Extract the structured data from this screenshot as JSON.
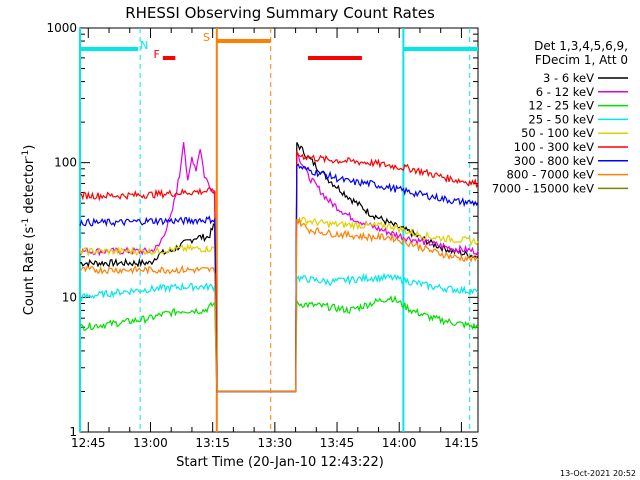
{
  "chart_data": {
    "type": "line",
    "title": "RHESSI Observing Summary Count Rates",
    "xlabel": "Start Time (20-Jan-10 12:43:22)",
    "ylabel_main": "Count Rate (s",
    "ylabel_sup1": "-1",
    "ylabel_mid": " detector",
    "ylabel_sup2": "-1",
    "ylabel_end": ")",
    "footer_timestamp": "13-Oct-2021 20:52",
    "x_range_minutes": [
      0,
      96
    ],
    "y_scale": "log",
    "ylim": [
      1,
      1000
    ],
    "x_ticks": [
      {
        "t": 2,
        "label": "12:45"
      },
      {
        "t": 17,
        "label": "13:00"
      },
      {
        "t": 32,
        "label": "13:15"
      },
      {
        "t": 47,
        "label": "13:30"
      },
      {
        "t": 62,
        "label": "13:45"
      },
      {
        "t": 77,
        "label": "14:00"
      },
      {
        "t": 92,
        "label": "14:15"
      }
    ],
    "y_ticks": [
      {
        "v": 1,
        "label": "1"
      },
      {
        "v": 10,
        "label": "10"
      },
      {
        "v": 100,
        "label": "100"
      },
      {
        "v": 1000,
        "label": "1000"
      }
    ],
    "legend_header": [
      "Det 1,3,4,5,6,9,",
      "FDecim 1, Att 0"
    ],
    "legend_position": "right",
    "series": [
      {
        "name": "3 - 6 keV",
        "color": "#000000",
        "points": [
          [
            0,
            18
          ],
          [
            17,
            18
          ],
          [
            19,
            21
          ],
          [
            22,
            22
          ],
          [
            25,
            25
          ],
          [
            28,
            28
          ],
          [
            31,
            28
          ],
          [
            32.5,
            35
          ],
          [
            33,
            2
          ],
          [
            52,
            2
          ],
          [
            52.3,
            140
          ],
          [
            55,
            110
          ],
          [
            60,
            75
          ],
          [
            65,
            55
          ],
          [
            70,
            42
          ],
          [
            75,
            35
          ],
          [
            80,
            30
          ],
          [
            85,
            25
          ],
          [
            90,
            22
          ],
          [
            96,
            20
          ]
        ]
      },
      {
        "name": "6 - 12 keV",
        "color": "#e000e0",
        "points": [
          [
            0,
            22
          ],
          [
            17,
            22
          ],
          [
            19,
            24
          ],
          [
            22,
            40
          ],
          [
            24,
            80
          ],
          [
            25,
            150
          ],
          [
            26,
            70
          ],
          [
            27,
            110
          ],
          [
            28,
            90
          ],
          [
            29,
            130
          ],
          [
            30,
            80
          ],
          [
            31,
            70
          ],
          [
            32.5,
            60
          ],
          [
            33,
            2
          ],
          [
            52,
            2
          ],
          [
            52.3,
            120
          ],
          [
            55,
            80
          ],
          [
            60,
            52
          ],
          [
            65,
            40
          ],
          [
            70,
            34
          ],
          [
            75,
            30
          ],
          [
            80,
            27
          ],
          [
            85,
            25
          ],
          [
            90,
            23
          ],
          [
            96,
            22
          ]
        ]
      },
      {
        "name": "12 - 25 keV",
        "color": "#00e000",
        "points": [
          [
            0,
            6
          ],
          [
            10,
            6.5
          ],
          [
            17,
            7
          ],
          [
            20,
            7.5
          ],
          [
            25,
            8
          ],
          [
            30,
            8
          ],
          [
            32.5,
            9
          ],
          [
            33,
            2
          ],
          [
            52,
            2
          ],
          [
            52.3,
            9
          ],
          [
            60,
            8.5
          ],
          [
            65,
            8
          ],
          [
            70,
            9
          ],
          [
            75,
            10
          ],
          [
            80,
            8
          ],
          [
            85,
            7
          ],
          [
            90,
            6.5
          ],
          [
            96,
            6
          ]
        ]
      },
      {
        "name": "25 - 50 keV",
        "color": "#00e8e8",
        "points": [
          [
            0,
            10
          ],
          [
            10,
            11
          ],
          [
            17,
            11.5
          ],
          [
            25,
            12
          ],
          [
            32.5,
            12
          ],
          [
            33,
            2
          ],
          [
            52,
            2
          ],
          [
            52.3,
            14
          ],
          [
            60,
            13
          ],
          [
            65,
            13.5
          ],
          [
            70,
            14
          ],
          [
            75,
            14
          ],
          [
            80,
            13
          ],
          [
            85,
            12
          ],
          [
            90,
            11.5
          ],
          [
            96,
            11
          ]
        ]
      },
      {
        "name": "50 - 100 keV",
        "color": "#e0d000",
        "points": [
          [
            0,
            22
          ],
          [
            17,
            22
          ],
          [
            25,
            23
          ],
          [
            32.5,
            23
          ],
          [
            33,
            2
          ],
          [
            52,
            2
          ],
          [
            52.3,
            38
          ],
          [
            60,
            35
          ],
          [
            70,
            34
          ],
          [
            75,
            34
          ],
          [
            80,
            30
          ],
          [
            85,
            28
          ],
          [
            90,
            27
          ],
          [
            96,
            26
          ]
        ]
      },
      {
        "name": "100 - 300 keV",
        "color": "#ff0000",
        "points": [
          [
            0,
            57
          ],
          [
            10,
            57
          ],
          [
            17,
            58
          ],
          [
            25,
            60
          ],
          [
            32.5,
            62
          ],
          [
            33,
            2
          ],
          [
            52,
            2
          ],
          [
            52.3,
            115
          ],
          [
            55,
            110
          ],
          [
            60,
            105
          ],
          [
            70,
            100
          ],
          [
            75,
            95
          ],
          [
            80,
            90
          ],
          [
            85,
            82
          ],
          [
            90,
            75
          ],
          [
            96,
            70
          ]
        ]
      },
      {
        "name": "300 - 800 keV",
        "color": "#0000ff",
        "points": [
          [
            0,
            36
          ],
          [
            10,
            36
          ],
          [
            17,
            37
          ],
          [
            25,
            37
          ],
          [
            32.5,
            38
          ],
          [
            33,
            2
          ],
          [
            52,
            2
          ],
          [
            52.3,
            95
          ],
          [
            55,
            88
          ],
          [
            60,
            80
          ],
          [
            65,
            72
          ],
          [
            70,
            70
          ],
          [
            75,
            65
          ],
          [
            80,
            60
          ],
          [
            85,
            56
          ],
          [
            90,
            52
          ],
          [
            96,
            50
          ]
        ]
      },
      {
        "name": "800 - 7000 keV",
        "color": "#ff8000",
        "points": [
          [
            0,
            16
          ],
          [
            10,
            16
          ],
          [
            17,
            16
          ],
          [
            25,
            16
          ],
          [
            32.5,
            16
          ],
          [
            33,
            2
          ],
          [
            52,
            2
          ],
          [
            52.3,
            38
          ],
          [
            55,
            32
          ],
          [
            60,
            30
          ],
          [
            65,
            29
          ],
          [
            70,
            28
          ],
          [
            75,
            28
          ],
          [
            80,
            25
          ],
          [
            85,
            22
          ],
          [
            90,
            20
          ],
          [
            96,
            19
          ]
        ]
      },
      {
        "name": "7000 - 15000 keV",
        "color": "#808000",
        "points": []
      }
    ],
    "flags": [
      {
        "label": "N",
        "color": "#00e8e8",
        "segments": [
          [
            0,
            14
          ],
          [
            78,
            96
          ]
        ],
        "label_at": 15.5
      },
      {
        "label": "F",
        "color": "#ff0000",
        "segments": [
          [
            20,
            23
          ],
          [
            55,
            68
          ]
        ],
        "label_at": 18.5
      },
      {
        "label": "S",
        "color": "#ff8000",
        "segments": [
          [
            33,
            46
          ]
        ],
        "label_at": 30.5
      }
    ],
    "vertical_markers": [
      {
        "t": 14.5,
        "color": "#00e8e8",
        "style": "dashed"
      },
      {
        "t": 33,
        "color": "#ff8000",
        "style": "solid"
      },
      {
        "t": 46,
        "color": "#ff8000",
        "style": "dashed"
      },
      {
        "t": 78,
        "color": "#00e8e8",
        "style": "solid"
      },
      {
        "t": 94,
        "color": "#00e8e8",
        "style": "dashed"
      },
      {
        "t": 0,
        "color": "#00e8e8",
        "style": "solid"
      }
    ]
  }
}
